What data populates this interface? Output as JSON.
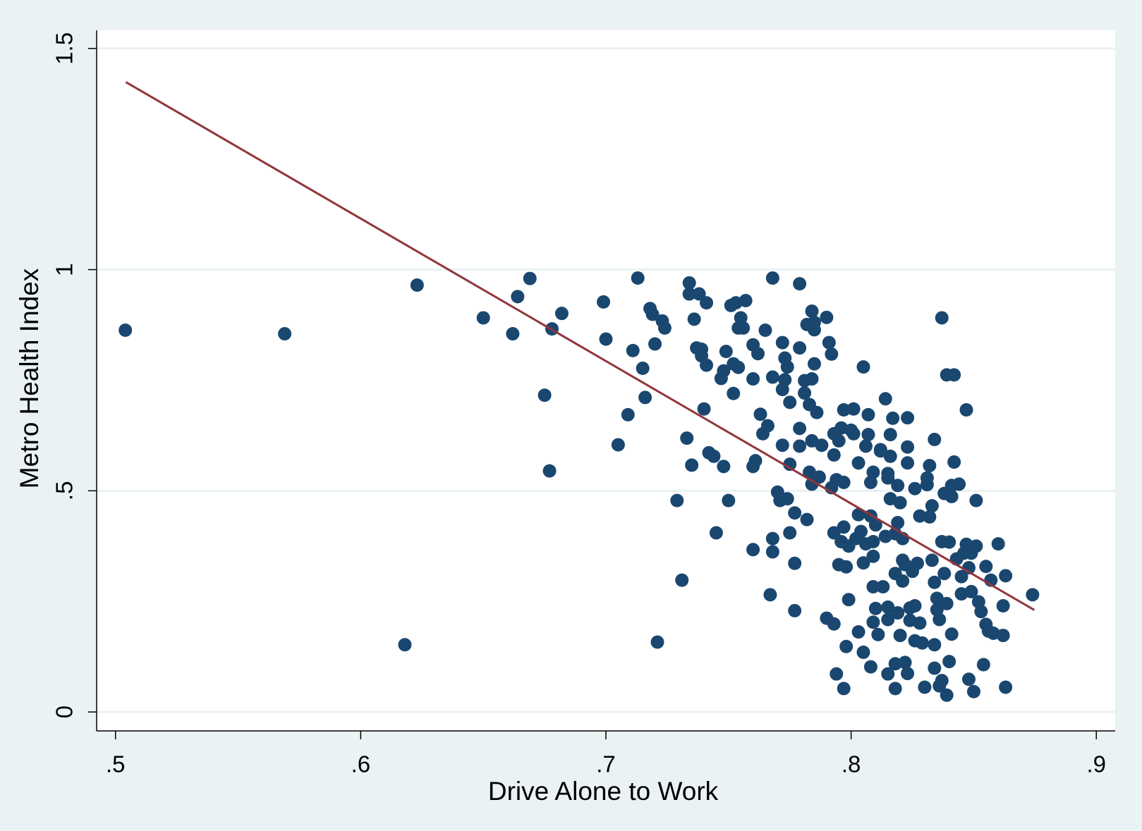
{
  "chart_data": {
    "type": "scatter",
    "x_label": "Drive Alone to Work",
    "y_label": "Metro Health Index",
    "color": "#1a476f",
    "xlim": [
      0.4923,
      0.9077
    ],
    "ylim": [
      -0.0428,
      1.541
    ],
    "xticks": [
      {
        "value": 0.5,
        "label": ".5"
      },
      {
        "value": 0.6,
        "label": ".6"
      },
      {
        "value": 0.7,
        "label": ".7"
      },
      {
        "value": 0.8,
        "label": ".8"
      },
      {
        "value": 0.9,
        "label": ".9"
      }
    ],
    "yticks": [
      0,
      {
        "value": 0.5,
        "label": ".5"
      },
      1,
      1.5
    ],
    "grid": true,
    "x": [
      0.504,
      0.569,
      0.623,
      0.618,
      0.65,
      0.662,
      0.664,
      0.669,
      0.675,
      0.677,
      0.678,
      0.682,
      0.699,
      0.7,
      0.705,
      0.709,
      0.711,
      0.713,
      0.715,
      0.716,
      0.718,
      0.719,
      0.72,
      0.721,
      0.723,
      0.724,
      0.729,
      0.731,
      0.733,
      0.734,
      0.734,
      0.735,
      0.736,
      0.737,
      0.738,
      0.739,
      0.739,
      0.74,
      0.741,
      0.741,
      0.742,
      0.744,
      0.745,
      0.747,
      0.748,
      0.748,
      0.749,
      0.75,
      0.751,
      0.752,
      0.752,
      0.753,
      0.754,
      0.754,
      0.755,
      0.756,
      0.757,
      0.76,
      0.76,
      0.76,
      0.761,
      0.76,
      0.762,
      0.763,
      0.764,
      0.765,
      0.766,
      0.767,
      0.768,
      0.768,
      0.768,
      0.768,
      0.77,
      0.771,
      0.772,
      0.773,
      0.772,
      0.772,
      0.773,
      0.774,
      0.774,
      0.775,
      0.775,
      0.775,
      0.777,
      0.777,
      0.777,
      0.779,
      0.779,
      0.779,
      0.779,
      0.781,
      0.781,
      0.782,
      0.782,
      0.783,
      0.783,
      0.784,
      0.784,
      0.784,
      0.784,
      0.785,
      0.785,
      0.785,
      0.786,
      0.787,
      0.788,
      0.79,
      0.79,
      0.791,
      0.792,
      0.792,
      0.793,
      0.793,
      0.793,
      0.793,
      0.794,
      0.794,
      0.795,
      0.795,
      0.796,
      0.796,
      0.797,
      0.797,
      0.797,
      0.797,
      0.798,
      0.798,
      0.799,
      0.799,
      0.8,
      0.801,
      0.801,
      0.802,
      0.803,
      0.803,
      0.803,
      0.804,
      0.805,
      0.805,
      0.805,
      0.806,
      0.806,
      0.807,
      0.807,
      0.808,
      0.808,
      0.808,
      0.809,
      0.809,
      0.809,
      0.809,
      0.809,
      0.81,
      0.81,
      0.811,
      0.812,
      0.812,
      0.813,
      0.814,
      0.814,
      0.815,
      0.815,
      0.815,
      0.815,
      0.815,
      0.816,
      0.816,
      0.816,
      0.817,
      0.818,
      0.818,
      0.818,
      0.818,
      0.819,
      0.819,
      0.819,
      0.82,
      0.82,
      0.821,
      0.821,
      0.821,
      0.822,
      0.822,
      0.823,
      0.823,
      0.823,
      0.823,
      0.824,
      0.824,
      0.825,
      0.826,
      0.826,
      0.826,
      0.827,
      0.828,
      0.828,
      0.829,
      0.83,
      0.831,
      0.831,
      0.832,
      0.832,
      0.833,
      0.833,
      0.834,
      0.834,
      0.834,
      0.834,
      0.835,
      0.835,
      0.836,
      0.836,
      0.837,
      0.837,
      0.837,
      0.838,
      0.838,
      0.839,
      0.839,
      0.839,
      0.84,
      0.84,
      0.841,
      0.841,
      0.841,
      0.842,
      0.842,
      0.843,
      0.844,
      0.845,
      0.845,
      0.846,
      0.847,
      0.847,
      0.848,
      0.848,
      0.849,
      0.849,
      0.85,
      0.851,
      0.851,
      0.852,
      0.853,
      0.854,
      0.855,
      0.855,
      0.856,
      0.857,
      0.858,
      0.86,
      0.862,
      0.862,
      0.863,
      0.863,
      0.874
    ],
    "values": [
      0.863,
      0.855,
      0.965,
      0.152,
      0.891,
      0.855,
      0.939,
      0.98,
      0.716,
      0.545,
      0.866,
      0.901,
      0.927,
      0.843,
      0.604,
      0.672,
      0.817,
      0.981,
      0.777,
      0.711,
      0.912,
      0.899,
      0.832,
      0.158,
      0.884,
      0.868,
      0.478,
      0.298,
      0.619,
      0.97,
      0.945,
      0.558,
      0.888,
      0.823,
      0.945,
      0.82,
      0.805,
      0.685,
      0.925,
      0.784,
      0.586,
      0.578,
      0.405,
      0.754,
      0.555,
      0.771,
      0.815,
      0.478,
      0.919,
      0.72,
      0.787,
      0.925,
      0.868,
      0.779,
      0.891,
      0.868,
      0.93,
      0.367,
      0.753,
      0.555,
      0.568,
      0.83,
      0.81,
      0.673,
      0.629,
      0.863,
      0.647,
      0.265,
      0.757,
      0.362,
      0.981,
      0.392,
      0.497,
      0.478,
      0.835,
      0.751,
      0.729,
      0.603,
      0.8,
      0.78,
      0.482,
      0.7,
      0.56,
      0.405,
      0.45,
      0.336,
      0.229,
      0.641,
      0.601,
      0.968,
      0.823,
      0.721,
      0.749,
      0.435,
      0.876,
      0.695,
      0.542,
      0.906,
      0.753,
      0.613,
      0.515,
      0.787,
      0.881,
      0.864,
      0.677,
      0.531,
      0.603,
      0.212,
      0.892,
      0.835,
      0.809,
      0.507,
      0.199,
      0.629,
      0.405,
      0.581,
      0.086,
      0.525,
      0.613,
      0.333,
      0.385,
      0.642,
      0.683,
      0.418,
      0.053,
      0.519,
      0.148,
      0.328,
      0.375,
      0.254,
      0.637,
      0.685,
      0.629,
      0.392,
      0.446,
      0.181,
      0.563,
      0.408,
      0.78,
      0.135,
      0.337,
      0.38,
      0.601,
      0.627,
      0.672,
      0.102,
      0.519,
      0.443,
      0.542,
      0.283,
      0.203,
      0.385,
      0.352,
      0.423,
      0.234,
      0.175,
      0.593,
      0.59,
      0.283,
      0.397,
      0.708,
      0.539,
      0.086,
      0.237,
      0.209,
      0.529,
      0.627,
      0.482,
      0.578,
      0.664,
      0.313,
      0.109,
      0.053,
      0.403,
      0.512,
      0.224,
      0.428,
      0.173,
      0.473,
      0.392,
      0.343,
      0.296,
      0.112,
      0.333,
      0.599,
      0.665,
      0.563,
      0.087,
      0.235,
      0.207,
      0.318,
      0.505,
      0.161,
      0.24,
      0.336,
      0.443,
      0.201,
      0.156,
      0.056,
      0.514,
      0.529,
      0.557,
      0.441,
      0.343,
      0.466,
      0.099,
      0.616,
      0.293,
      0.152,
      0.231,
      0.257,
      0.209,
      0.059,
      0.385,
      0.071,
      0.891,
      0.313,
      0.494,
      0.038,
      0.762,
      0.245,
      0.384,
      0.114,
      0.487,
      0.176,
      0.512,
      0.762,
      0.565,
      0.346,
      0.515,
      0.267,
      0.306,
      0.359,
      0.683,
      0.379,
      0.326,
      0.074,
      0.272,
      0.359,
      0.046,
      0.478,
      0.375,
      0.249,
      0.227,
      0.107,
      0.329,
      0.198,
      0.183,
      0.298,
      0.178,
      0.38,
      0.24,
      0.173,
      0.308,
      0.056,
      0.265
    ],
    "fit_line": {
      "type": "line",
      "color": "#90353b",
      "x": [
        0.5042,
        0.8747
      ],
      "values": [
        1.424,
        0.2305
      ]
    }
  }
}
